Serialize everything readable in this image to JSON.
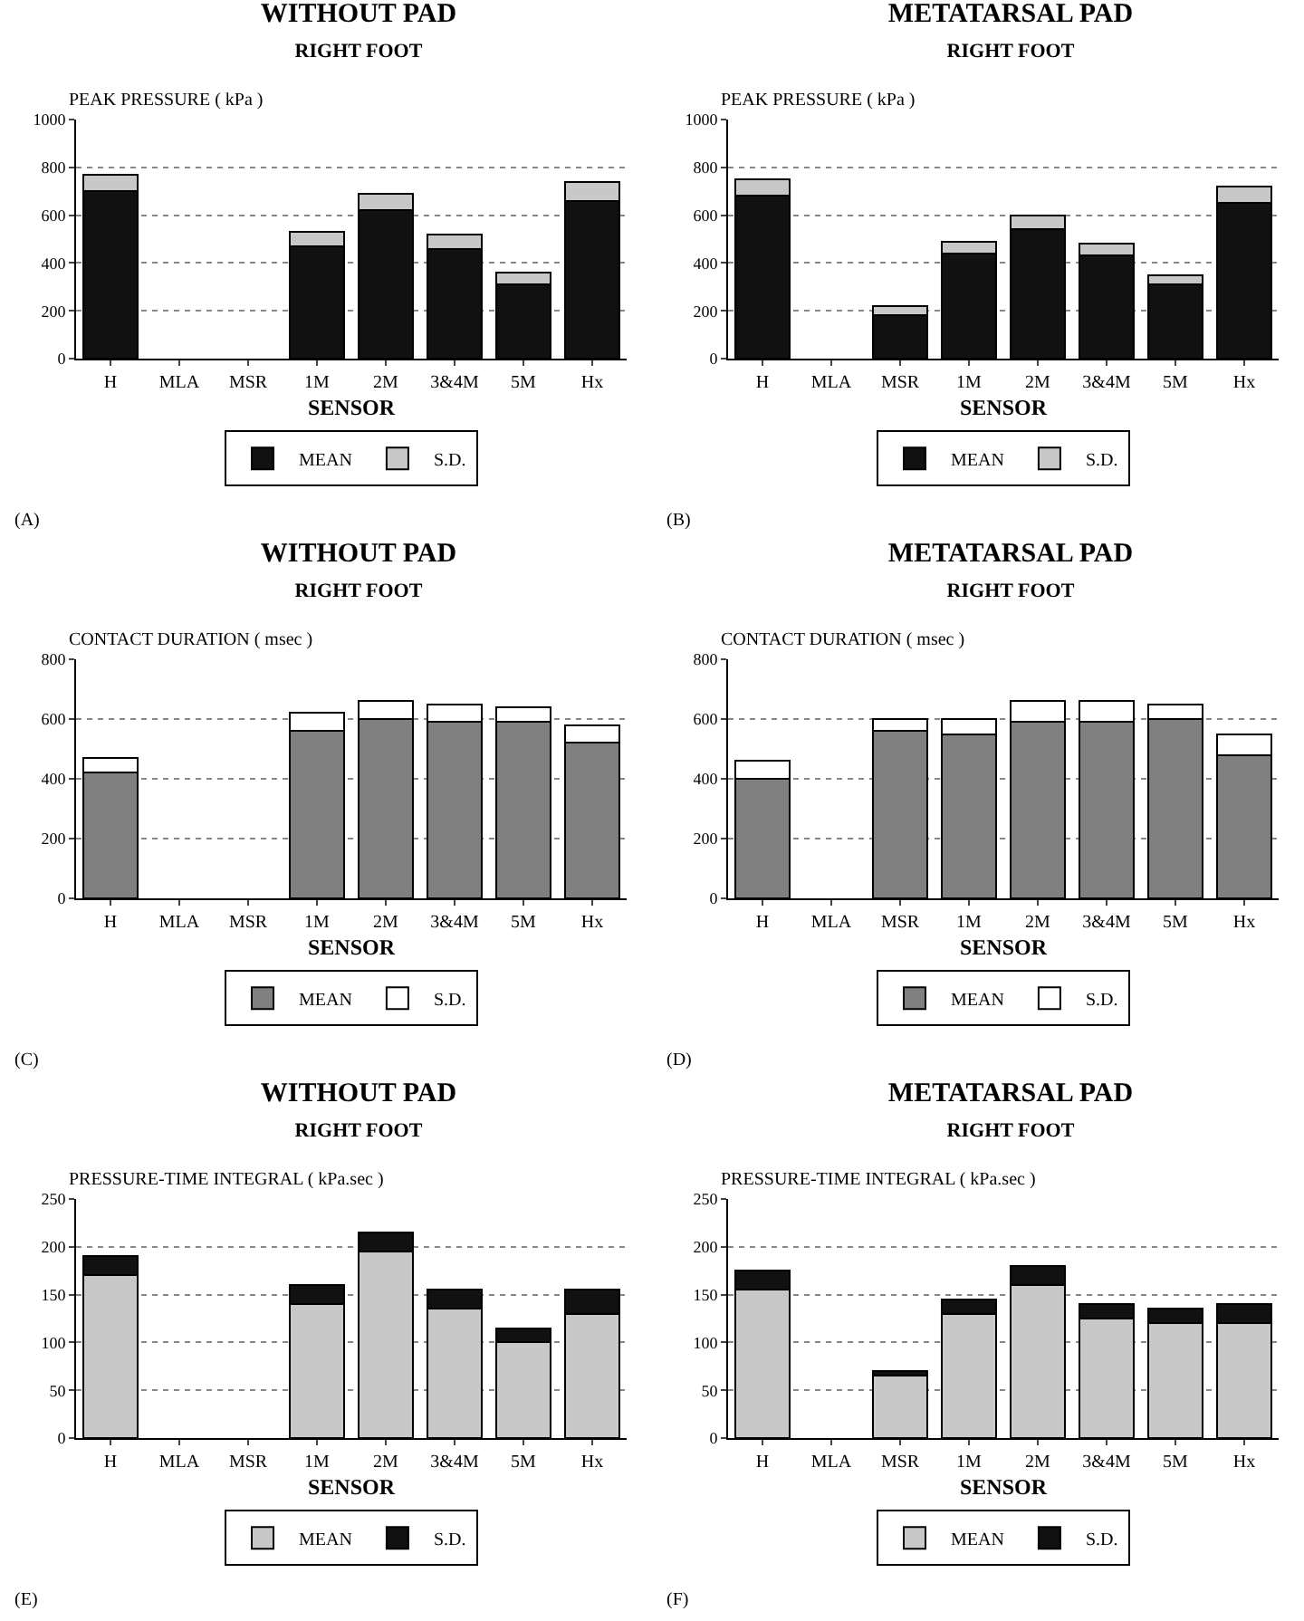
{
  "chart_data": [
    {
      "type": "bar",
      "title": "WITHOUT PAD",
      "subtitle": "RIGHT FOOT",
      "ylabel": "PEAK PRESSURE ( kPa )",
      "xlabel": "SENSOR",
      "annotations": [
        "(A)"
      ],
      "categories": [
        "H",
        "MLA",
        "MSR",
        "1M",
        "2M",
        "3&4M",
        "5M",
        "Hx"
      ],
      "stacked": true,
      "ylim": [
        0,
        1000
      ],
      "yticks": [
        0,
        200,
        400,
        600,
        800,
        1000
      ],
      "grid": "y",
      "legend": "bottom",
      "series": [
        {
          "name": "MEAN",
          "color": "#111111",
          "values": [
            700,
            0,
            0,
            470,
            620,
            460,
            310,
            660
          ]
        },
        {
          "name": "S.D.",
          "color": "#c8c8c8",
          "values": [
            70,
            0,
            0,
            60,
            70,
            60,
            50,
            80
          ]
        }
      ]
    },
    {
      "type": "bar",
      "title": "METATARSAL PAD",
      "subtitle": "RIGHT FOOT",
      "ylabel": "PEAK PRESSURE ( kPa )",
      "xlabel": "SENSOR",
      "annotations": [
        "(B)"
      ],
      "categories": [
        "H",
        "MLA",
        "MSR",
        "1M",
        "2M",
        "3&4M",
        "5M",
        "Hx"
      ],
      "stacked": true,
      "ylim": [
        0,
        1000
      ],
      "yticks": [
        0,
        200,
        400,
        600,
        800,
        1000
      ],
      "grid": "y",
      "legend": "bottom",
      "series": [
        {
          "name": "MEAN",
          "color": "#111111",
          "values": [
            680,
            0,
            180,
            440,
            540,
            430,
            310,
            650
          ]
        },
        {
          "name": "S.D.",
          "color": "#c8c8c8",
          "values": [
            70,
            0,
            40,
            50,
            60,
            50,
            40,
            70
          ]
        }
      ]
    },
    {
      "type": "bar",
      "title": "WITHOUT PAD",
      "subtitle": "RIGHT FOOT",
      "ylabel": "CONTACT DURATION ( msec )",
      "xlabel": "SENSOR",
      "annotations": [
        "(C)"
      ],
      "categories": [
        "H",
        "MLA",
        "MSR",
        "1M",
        "2M",
        "3&4M",
        "5M",
        "Hx"
      ],
      "stacked": true,
      "ylim": [
        0,
        800
      ],
      "yticks": [
        0,
        200,
        400,
        600,
        800
      ],
      "grid": "y",
      "legend": "bottom",
      "series": [
        {
          "name": "MEAN",
          "color": "#808080",
          "values": [
            420,
            0,
            0,
            560,
            600,
            590,
            590,
            520
          ]
        },
        {
          "name": "S.D.",
          "color": "#ffffff",
          "values": [
            50,
            0,
            0,
            60,
            60,
            60,
            50,
            60
          ]
        }
      ]
    },
    {
      "type": "bar",
      "title": "METATARSAL PAD",
      "subtitle": "RIGHT FOOT",
      "ylabel": "CONTACT DURATION ( msec )",
      "xlabel": "SENSOR",
      "annotations": [
        "(D)"
      ],
      "categories": [
        "H",
        "MLA",
        "MSR",
        "1M",
        "2M",
        "3&4M",
        "5M",
        "Hx"
      ],
      "stacked": true,
      "ylim": [
        0,
        800
      ],
      "yticks": [
        0,
        200,
        400,
        600,
        800
      ],
      "grid": "y",
      "legend": "bottom",
      "series": [
        {
          "name": "MEAN",
          "color": "#808080",
          "values": [
            400,
            0,
            560,
            550,
            590,
            590,
            600,
            480
          ]
        },
        {
          "name": "S.D.",
          "color": "#ffffff",
          "values": [
            60,
            0,
            40,
            50,
            70,
            70,
            50,
            70
          ]
        }
      ]
    },
    {
      "type": "bar",
      "title": "WITHOUT PAD",
      "subtitle": "RIGHT FOOT",
      "ylabel": "PRESSURE-TIME INTEGRAL ( kPa.sec )",
      "xlabel": "SENSOR",
      "annotations": [
        "(E)"
      ],
      "categories": [
        "H",
        "MLA",
        "MSR",
        "1M",
        "2M",
        "3&4M",
        "5M",
        "Hx"
      ],
      "stacked": true,
      "ylim": [
        0,
        250
      ],
      "yticks": [
        0,
        50,
        100,
        150,
        200,
        250
      ],
      "grid": "y",
      "legend": "bottom",
      "series": [
        {
          "name": "MEAN",
          "color": "#c8c8c8",
          "values": [
            170,
            0,
            0,
            140,
            195,
            135,
            100,
            130
          ]
        },
        {
          "name": "S.D.",
          "color": "#111111",
          "values": [
            20,
            0,
            0,
            20,
            20,
            20,
            15,
            25
          ]
        }
      ]
    },
    {
      "type": "bar",
      "title": "METATARSAL PAD",
      "subtitle": "RIGHT FOOT",
      "ylabel": "PRESSURE-TIME INTEGRAL ( kPa.sec )",
      "xlabel": "SENSOR",
      "annotations": [
        "(F)"
      ],
      "categories": [
        "H",
        "MLA",
        "MSR",
        "1M",
        "2M",
        "3&4M",
        "5M",
        "Hx"
      ],
      "stacked": true,
      "ylim": [
        0,
        250
      ],
      "yticks": [
        0,
        50,
        100,
        150,
        200,
        250
      ],
      "grid": "y",
      "legend": "bottom",
      "series": [
        {
          "name": "MEAN",
          "color": "#c8c8c8",
          "values": [
            155,
            0,
            65,
            130,
            160,
            125,
            120,
            120
          ]
        },
        {
          "name": "S.D.",
          "color": "#111111",
          "values": [
            20,
            0,
            5,
            15,
            20,
            15,
            15,
            20
          ]
        }
      ]
    }
  ]
}
